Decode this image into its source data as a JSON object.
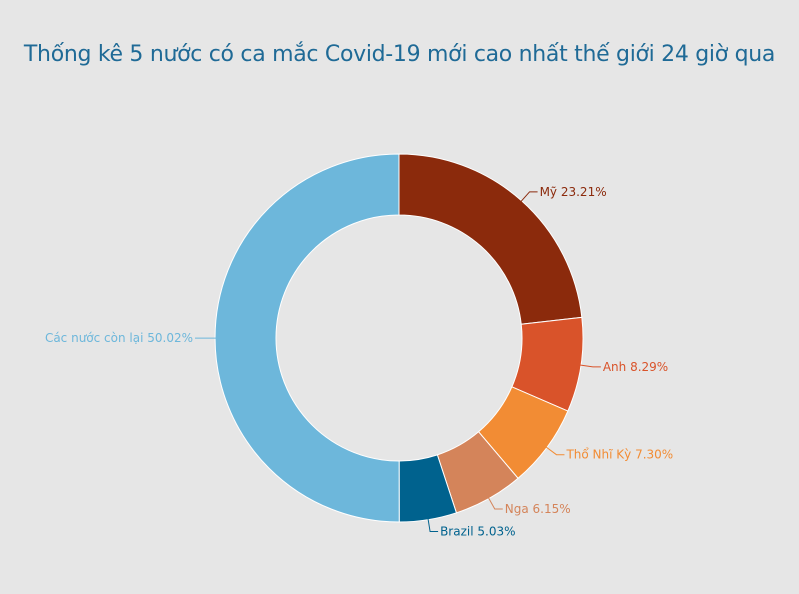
{
  "chart_data": {
    "type": "pie",
    "donut": true,
    "title": "Thống kê 5 nước có ca mắc Covid-19 mới cao nhất thế giới 24 giờ qua",
    "legend": "none",
    "slices": [
      {
        "name": "Mỹ",
        "value": 23.21,
        "label": "Mỹ 23.21%",
        "color": "#8b2a0c"
      },
      {
        "name": "Anh",
        "value": 8.29,
        "label": "Anh 8.29%",
        "color": "#d9532a"
      },
      {
        "name": "Thổ Nhĩ Kỳ",
        "value": 7.3,
        "label": "Thổ Nhĩ Kỳ 7.30%",
        "color": "#f28c34"
      },
      {
        "name": "Nga",
        "value": 6.15,
        "label": "Nga 6.15%",
        "color": "#d4845a"
      },
      {
        "name": "Brazil",
        "value": 5.03,
        "label": "Brazil 5.03%",
        "color": "#00628e"
      },
      {
        "name": "Các nước còn lại",
        "value": 50.02,
        "label": "Các nước còn lại 50.02%",
        "color": "#6db7db"
      }
    ]
  }
}
